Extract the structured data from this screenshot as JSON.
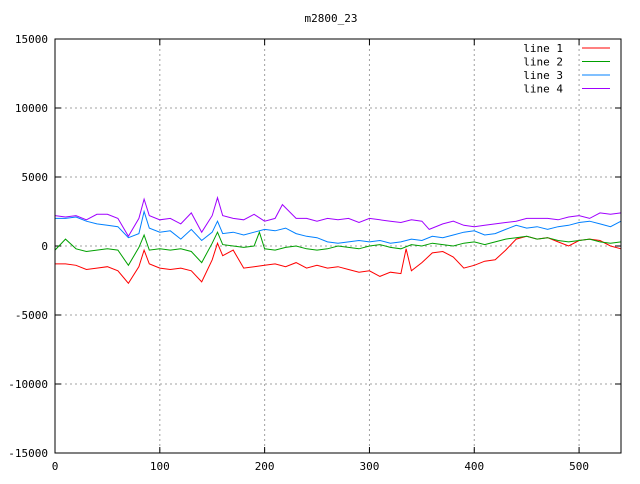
{
  "chart_data": {
    "type": "line",
    "title": "m2800_23",
    "xlabel": "",
    "ylabel": "",
    "xlim": [
      0,
      540
    ],
    "ylim": [
      -15000,
      15000
    ],
    "xticks": [
      0,
      100,
      200,
      300,
      400,
      500
    ],
    "yticks": [
      -15000,
      -10000,
      -5000,
      0,
      5000,
      10000,
      15000
    ],
    "grid": true,
    "legend_position": "top-right",
    "series": [
      {
        "name": "line 1",
        "color": "#ff0000",
        "points": [
          [
            0,
            -1300
          ],
          [
            10,
            -1300
          ],
          [
            20,
            -1400
          ],
          [
            30,
            -1700
          ],
          [
            40,
            -1600
          ],
          [
            50,
            -1500
          ],
          [
            60,
            -1800
          ],
          [
            70,
            -2700
          ],
          [
            80,
            -1500
          ],
          [
            85,
            -300
          ],
          [
            90,
            -1300
          ],
          [
            100,
            -1600
          ],
          [
            110,
            -1700
          ],
          [
            120,
            -1600
          ],
          [
            130,
            -1800
          ],
          [
            140,
            -2600
          ],
          [
            150,
            -1000
          ],
          [
            155,
            200
          ],
          [
            160,
            -700
          ],
          [
            170,
            -300
          ],
          [
            180,
            -1600
          ],
          [
            190,
            -1500
          ],
          [
            200,
            -1400
          ],
          [
            210,
            -1300
          ],
          [
            220,
            -1500
          ],
          [
            230,
            -1200
          ],
          [
            240,
            -1600
          ],
          [
            250,
            -1400
          ],
          [
            260,
            -1600
          ],
          [
            270,
            -1500
          ],
          [
            280,
            -1700
          ],
          [
            290,
            -1900
          ],
          [
            300,
            -1800
          ],
          [
            310,
            -2200
          ],
          [
            320,
            -1900
          ],
          [
            330,
            -2000
          ],
          [
            335,
            -200
          ],
          [
            340,
            -1800
          ],
          [
            350,
            -1200
          ],
          [
            360,
            -500
          ],
          [
            370,
            -400
          ],
          [
            380,
            -800
          ],
          [
            390,
            -1600
          ],
          [
            400,
            -1400
          ],
          [
            410,
            -1100
          ],
          [
            420,
            -1000
          ],
          [
            430,
            -300
          ],
          [
            440,
            500
          ],
          [
            450,
            700
          ],
          [
            460,
            500
          ],
          [
            470,
            600
          ],
          [
            480,
            300
          ],
          [
            490,
            0
          ],
          [
            500,
            400
          ],
          [
            510,
            500
          ],
          [
            520,
            400
          ],
          [
            530,
            0
          ],
          [
            540,
            -200
          ]
        ]
      },
      {
        "name": "line 2",
        "color": "#00a000",
        "points": [
          [
            0,
            -300
          ],
          [
            10,
            500
          ],
          [
            20,
            -200
          ],
          [
            30,
            -400
          ],
          [
            40,
            -300
          ],
          [
            50,
            -200
          ],
          [
            60,
            -300
          ],
          [
            70,
            -1400
          ],
          [
            80,
            -100
          ],
          [
            85,
            800
          ],
          [
            90,
            -300
          ],
          [
            100,
            -200
          ],
          [
            110,
            -300
          ],
          [
            120,
            -200
          ],
          [
            130,
            -400
          ],
          [
            140,
            -1200
          ],
          [
            150,
            200
          ],
          [
            155,
            1000
          ],
          [
            160,
            100
          ],
          [
            170,
            0
          ],
          [
            180,
            -100
          ],
          [
            190,
            0
          ],
          [
            195,
            1000
          ],
          [
            200,
            -200
          ],
          [
            210,
            -300
          ],
          [
            220,
            -100
          ],
          [
            230,
            0
          ],
          [
            240,
            -200
          ],
          [
            250,
            -300
          ],
          [
            260,
            -200
          ],
          [
            270,
            0
          ],
          [
            280,
            -100
          ],
          [
            290,
            -200
          ],
          [
            300,
            0
          ],
          [
            310,
            100
          ],
          [
            320,
            -100
          ],
          [
            330,
            -200
          ],
          [
            340,
            100
          ],
          [
            350,
            0
          ],
          [
            360,
            200
          ],
          [
            370,
            100
          ],
          [
            380,
            0
          ],
          [
            390,
            200
          ],
          [
            400,
            300
          ],
          [
            410,
            100
          ],
          [
            420,
            300
          ],
          [
            430,
            500
          ],
          [
            440,
            600
          ],
          [
            450,
            700
          ],
          [
            460,
            500
          ],
          [
            470,
            600
          ],
          [
            480,
            400
          ],
          [
            490,
            300
          ],
          [
            500,
            400
          ],
          [
            510,
            500
          ],
          [
            520,
            300
          ],
          [
            530,
            200
          ],
          [
            540,
            300
          ]
        ]
      },
      {
        "name": "line 3",
        "color": "#0080ff",
        "points": [
          [
            0,
            2000
          ],
          [
            10,
            2000
          ],
          [
            20,
            2100
          ],
          [
            30,
            1800
          ],
          [
            40,
            1600
          ],
          [
            50,
            1500
          ],
          [
            60,
            1400
          ],
          [
            70,
            600
          ],
          [
            80,
            900
          ],
          [
            85,
            2500
          ],
          [
            90,
            1300
          ],
          [
            100,
            1000
          ],
          [
            110,
            1100
          ],
          [
            120,
            500
          ],
          [
            130,
            1200
          ],
          [
            140,
            400
          ],
          [
            150,
            1000
          ],
          [
            155,
            1800
          ],
          [
            160,
            900
          ],
          [
            170,
            1000
          ],
          [
            180,
            800
          ],
          [
            190,
            1000
          ],
          [
            200,
            1200
          ],
          [
            210,
            1100
          ],
          [
            220,
            1300
          ],
          [
            230,
            900
          ],
          [
            240,
            700
          ],
          [
            250,
            600
          ],
          [
            260,
            300
          ],
          [
            270,
            200
          ],
          [
            280,
            300
          ],
          [
            290,
            400
          ],
          [
            300,
            300
          ],
          [
            310,
            400
          ],
          [
            320,
            200
          ],
          [
            330,
            300
          ],
          [
            340,
            500
          ],
          [
            350,
            400
          ],
          [
            360,
            700
          ],
          [
            370,
            600
          ],
          [
            380,
            800
          ],
          [
            390,
            1000
          ],
          [
            400,
            1100
          ],
          [
            410,
            800
          ],
          [
            420,
            900
          ],
          [
            430,
            1200
          ],
          [
            440,
            1500
          ],
          [
            450,
            1300
          ],
          [
            460,
            1400
          ],
          [
            470,
            1200
          ],
          [
            480,
            1400
          ],
          [
            490,
            1500
          ],
          [
            500,
            1700
          ],
          [
            510,
            1800
          ],
          [
            520,
            1600
          ],
          [
            530,
            1400
          ],
          [
            540,
            1800
          ]
        ]
      },
      {
        "name": "line 4",
        "color": "#a000ff",
        "points": [
          [
            0,
            2200
          ],
          [
            10,
            2100
          ],
          [
            20,
            2200
          ],
          [
            30,
            1900
          ],
          [
            40,
            2300
          ],
          [
            50,
            2300
          ],
          [
            60,
            2000
          ],
          [
            70,
            700
          ],
          [
            80,
            2000
          ],
          [
            85,
            3400
          ],
          [
            90,
            2200
          ],
          [
            100,
            1900
          ],
          [
            110,
            2000
          ],
          [
            120,
            1600
          ],
          [
            130,
            2400
          ],
          [
            140,
            1000
          ],
          [
            150,
            2200
          ],
          [
            155,
            3500
          ],
          [
            160,
            2200
          ],
          [
            170,
            2000
          ],
          [
            180,
            1900
          ],
          [
            190,
            2300
          ],
          [
            200,
            1800
          ],
          [
            210,
            2000
          ],
          [
            217,
            3000
          ],
          [
            230,
            2000
          ],
          [
            240,
            2000
          ],
          [
            250,
            1800
          ],
          [
            260,
            2000
          ],
          [
            270,
            1900
          ],
          [
            280,
            2000
          ],
          [
            290,
            1700
          ],
          [
            300,
            2000
          ],
          [
            310,
            1900
          ],
          [
            320,
            1800
          ],
          [
            330,
            1700
          ],
          [
            340,
            1900
          ],
          [
            350,
            1800
          ],
          [
            357,
            1200
          ],
          [
            370,
            1600
          ],
          [
            380,
            1800
          ],
          [
            390,
            1500
          ],
          [
            400,
            1400
          ],
          [
            410,
            1500
          ],
          [
            420,
            1600
          ],
          [
            430,
            1700
          ],
          [
            440,
            1800
          ],
          [
            450,
            2000
          ],
          [
            460,
            2000
          ],
          [
            470,
            2000
          ],
          [
            480,
            1900
          ],
          [
            490,
            2100
          ],
          [
            500,
            2200
          ],
          [
            510,
            2000
          ],
          [
            520,
            2400
          ],
          [
            530,
            2300
          ],
          [
            540,
            2400
          ]
        ]
      }
    ]
  }
}
